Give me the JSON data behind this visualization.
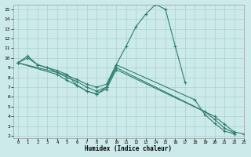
{
  "xlabel": "Humidex (Indice chaleur)",
  "xlim": [
    -0.5,
    23
  ],
  "ylim": [
    1.8,
    15.5
  ],
  "yticks": [
    2,
    3,
    4,
    5,
    6,
    7,
    8,
    9,
    10,
    11,
    12,
    13,
    14,
    15
  ],
  "xticks": [
    0,
    1,
    2,
    3,
    4,
    5,
    6,
    7,
    8,
    9,
    10,
    11,
    12,
    13,
    14,
    15,
    16,
    17,
    18,
    19,
    20,
    21,
    22,
    23
  ],
  "line_color": "#2e7d6e",
  "bg_color": "#cceaea",
  "grid_color": "#aacfcf",
  "series": [
    {
      "x": [
        0,
        1,
        2,
        3,
        4,
        5,
        6,
        7,
        8,
        9,
        10,
        11,
        12,
        13,
        14,
        15,
        16,
        17
      ],
      "y": [
        9.5,
        10.2,
        9.3,
        9.0,
        8.7,
        8.3,
        7.2,
        6.6,
        6.3,
        7.0,
        9.3,
        11.2,
        13.2,
        14.5,
        15.5,
        15.0,
        11.2,
        7.5
      ]
    },
    {
      "x": [
        0,
        1,
        2,
        3,
        4,
        5,
        6,
        7,
        8,
        9,
        10,
        18,
        19,
        20,
        21,
        22
      ],
      "y": [
        9.5,
        10.0,
        9.3,
        9.0,
        8.5,
        8.2,
        7.8,
        7.3,
        7.0,
        7.3,
        9.3,
        5.7,
        4.2,
        3.3,
        2.5,
        2.2
      ]
    },
    {
      "x": [
        0,
        4,
        5,
        6,
        7,
        8,
        9,
        10,
        19,
        20,
        21,
        22
      ],
      "y": [
        9.5,
        8.5,
        8.0,
        7.6,
        7.0,
        6.6,
        7.0,
        9.0,
        4.5,
        3.7,
        2.8,
        2.3
      ]
    },
    {
      "x": [
        0,
        4,
        5,
        6,
        7,
        8,
        9,
        10,
        20,
        21,
        22,
        23
      ],
      "y": [
        9.5,
        8.3,
        7.7,
        7.2,
        6.6,
        6.3,
        6.8,
        8.8,
        4.0,
        3.2,
        2.4,
        2.2
      ]
    }
  ]
}
